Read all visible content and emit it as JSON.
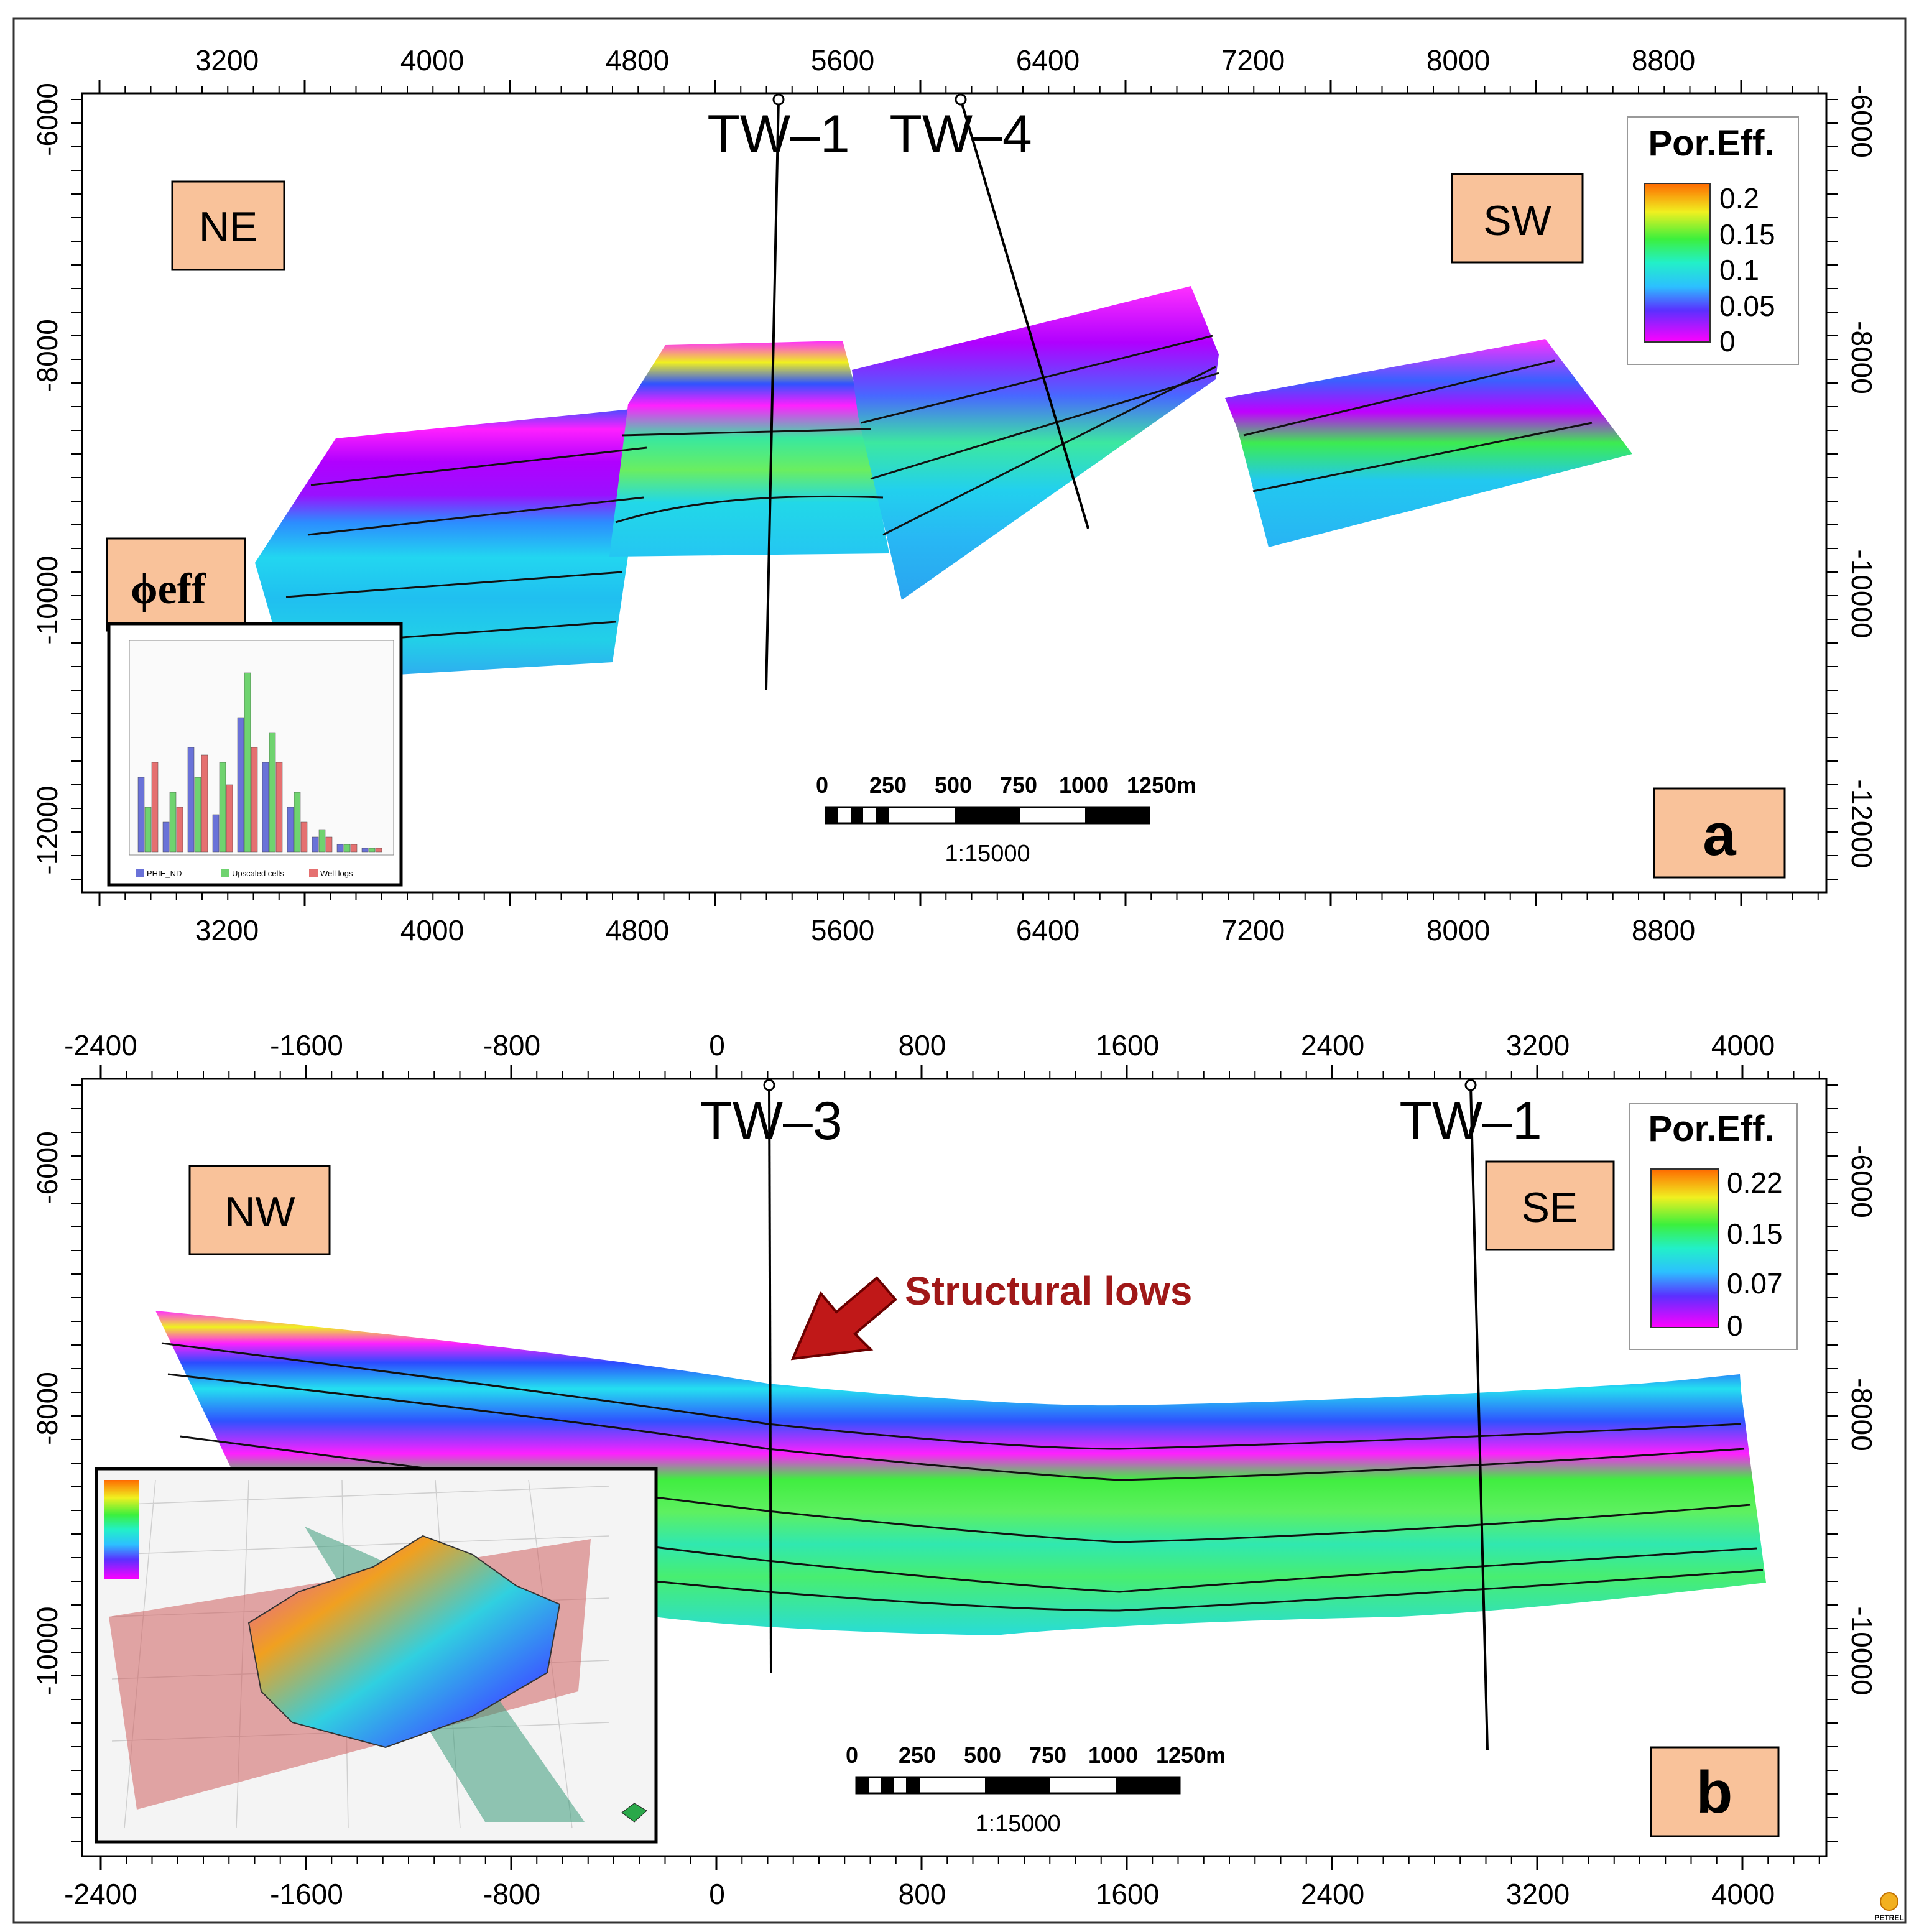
{
  "panel_a": {
    "x_ticks": [
      "3200",
      "4000",
      "4800",
      "5600",
      "6400",
      "7200",
      "8000",
      "8800"
    ],
    "y_ticks_left": [
      "-6000",
      "-8000",
      "-10000",
      "-12000"
    ],
    "y_ticks_right": [
      "-6000",
      "-8000",
      "-10000",
      "-12000"
    ],
    "wells": [
      "TW–1",
      "TW–4"
    ],
    "direction_left": "NE",
    "direction_right": "SW",
    "legend": {
      "title": "Por.Eff.",
      "ticks": [
        "0.2",
        "0.15",
        "0.1",
        "0.05",
        "0"
      ]
    },
    "scale_bar": {
      "ticks": [
        "0",
        "250",
        "500",
        "750",
        "1000",
        "1250m"
      ],
      "ratio": "1:15000"
    },
    "panel_letter": "a",
    "inset_label": "ϕeff",
    "histogram_inset": {
      "legend": [
        "PHIE_ND",
        "Upscaled cells",
        "Well logs"
      ],
      "series_colors": [
        "#6a72d8",
        "#6fd36f",
        "#e57070"
      ]
    }
  },
  "panel_b": {
    "x_ticks": [
      "-2400",
      "-1600",
      "-800",
      "0",
      "800",
      "1600",
      "2400",
      "3200",
      "4000"
    ],
    "y_ticks_left": [
      "-6000",
      "-8000",
      "-10000"
    ],
    "y_ticks_right": [
      "-6000",
      "-8000",
      "-10000"
    ],
    "wells": [
      "TW–3",
      "TW–1"
    ],
    "direction_left": "NW",
    "direction_right": "SE",
    "annotation": "Structural lows",
    "legend": {
      "title": "Por.Eff.",
      "ticks": [
        "0.22",
        "0.15",
        "0.07",
        "0"
      ]
    },
    "scale_bar": {
      "ticks": [
        "0",
        "250",
        "500",
        "750",
        "1000",
        "1250m"
      ],
      "ratio": "1:15000"
    },
    "panel_letter": "b"
  },
  "logo_text": "PETREL",
  "colors": {
    "label_box_fill": "#f9c29a",
    "annotation_red": "#a01818",
    "porosity_scale": [
      "#ff00ff",
      "#2c5cff",
      "#26e0f0",
      "#38ec40",
      "#f0f020",
      "#ff7a00"
    ]
  }
}
